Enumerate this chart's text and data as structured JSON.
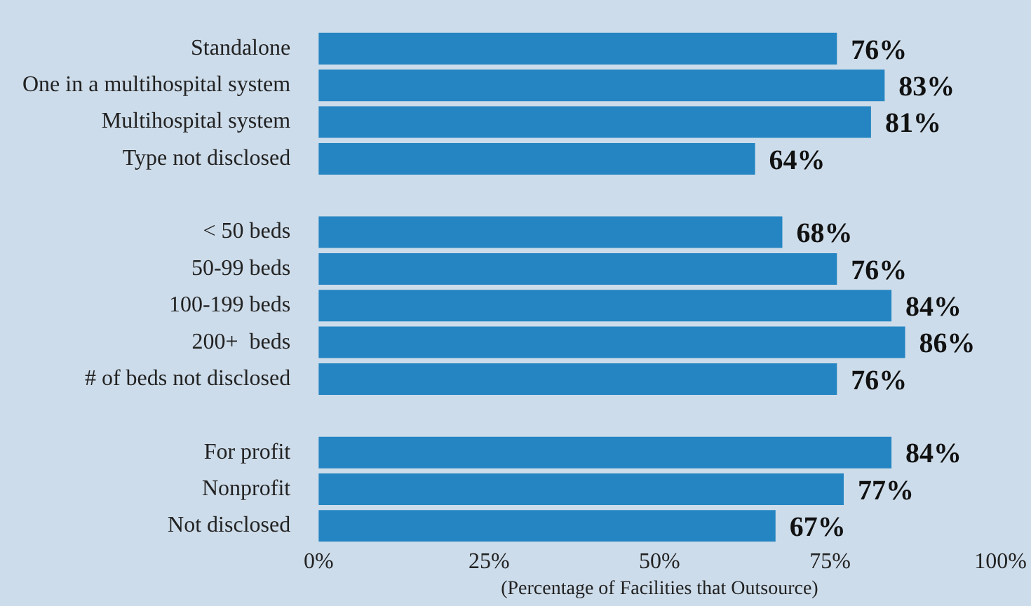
{
  "chart_data": {
    "type": "bar",
    "orientation": "horizontal",
    "xlabel": "(Percentage of Facilities that Outsource)",
    "categories": [
      "Standalone",
      "One in a multihospital system",
      "Multihospital system",
      "Type not disclosed",
      null,
      "< 50 beds",
      "50-99 beds",
      "100-199 beds",
      "200+  beds",
      "# of beds not disclosed",
      null,
      "For profit",
      "Nonprofit",
      "Not disclosed"
    ],
    "values": [
      76,
      83,
      81,
      64,
      null,
      68,
      76,
      84,
      86,
      76,
      null,
      84,
      77,
      67
    ],
    "value_labels": [
      "76%",
      "83%",
      "81%",
      "64%",
      null,
      "68%",
      "76%",
      "84%",
      "86%",
      "76%",
      null,
      "84%",
      "77%",
      "67%"
    ],
    "color": "#2585c2",
    "xlim": [
      0,
      100
    ],
    "xticks": [
      {
        "value": 0,
        "label": "0%"
      },
      {
        "value": 25,
        "label": "25%"
      },
      {
        "value": 50,
        "label": "50%"
      },
      {
        "value": 75,
        "label": "75%"
      },
      {
        "value": 100,
        "label": "100%"
      }
    ],
    "grid": false,
    "legend": false
  }
}
